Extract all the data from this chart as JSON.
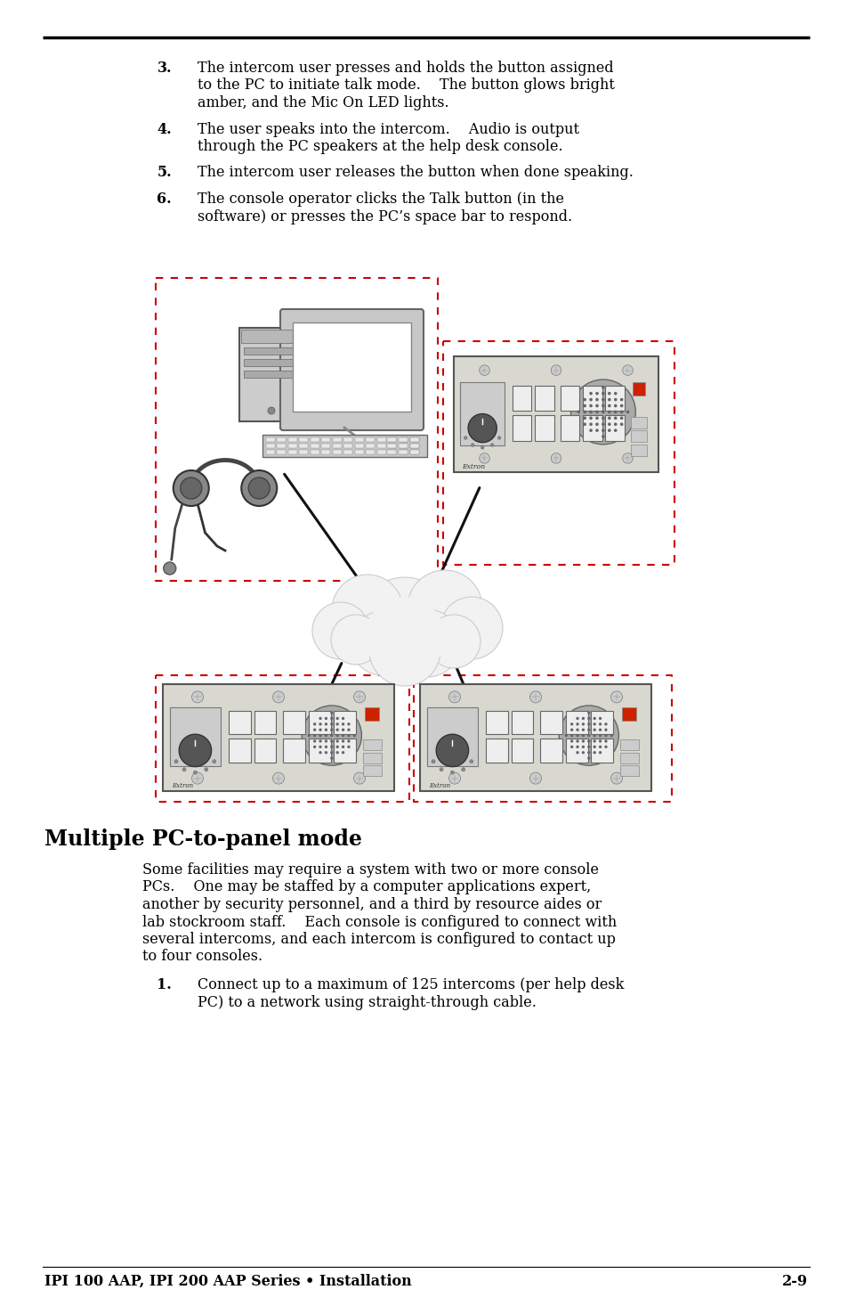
{
  "bg_color": "#ffffff",
  "text_color": "#000000",
  "items_3to6": [
    {
      "num": "3.",
      "lines": [
        "The intercom user presses and holds the button assigned",
        "to the PC to initiate talk mode.  The button glows bright",
        "amber, and the Mic On LED lights."
      ]
    },
    {
      "num": "4.",
      "lines": [
        "The user speaks into the intercom.  Audio is output",
        "through the PC speakers at the help desk console."
      ]
    },
    {
      "num": "5.",
      "lines": [
        "The intercom user releases the button when done speaking."
      ]
    },
    {
      "num": "6.",
      "lines": [
        "The console operator clicks the Talk button (in the",
        "software) or presses the PC’s space bar to respond."
      ]
    }
  ],
  "section_title": "Multiple PC-to-panel mode",
  "section_body_lines": [
    "Some facilities may require a system with two or more console",
    "PCs.  One may be staffed by a computer applications expert,",
    "another by security personnel, and a third by resource aides or",
    "lab stockroom staff.  Each console is configured to connect with",
    "several intercoms, and each intercom is configured to contact up",
    "to four consoles."
  ],
  "item1_lines": [
    "Connect up to a maximum of 125 intercoms (per help desk",
    "PC) to a network using straight-through cable."
  ],
  "footer_left": "IPI 100 AAP, IPI 200 AAP Series • Installation",
  "footer_right": "2-9",
  "dashed_color": "#cc0000",
  "line_color": "#000000",
  "panel_bg": "#e8e8e8",
  "panel_border": "#666666",
  "cloud_fill": "#f0f0f0",
  "cloud_edge": "#bbbbbb"
}
